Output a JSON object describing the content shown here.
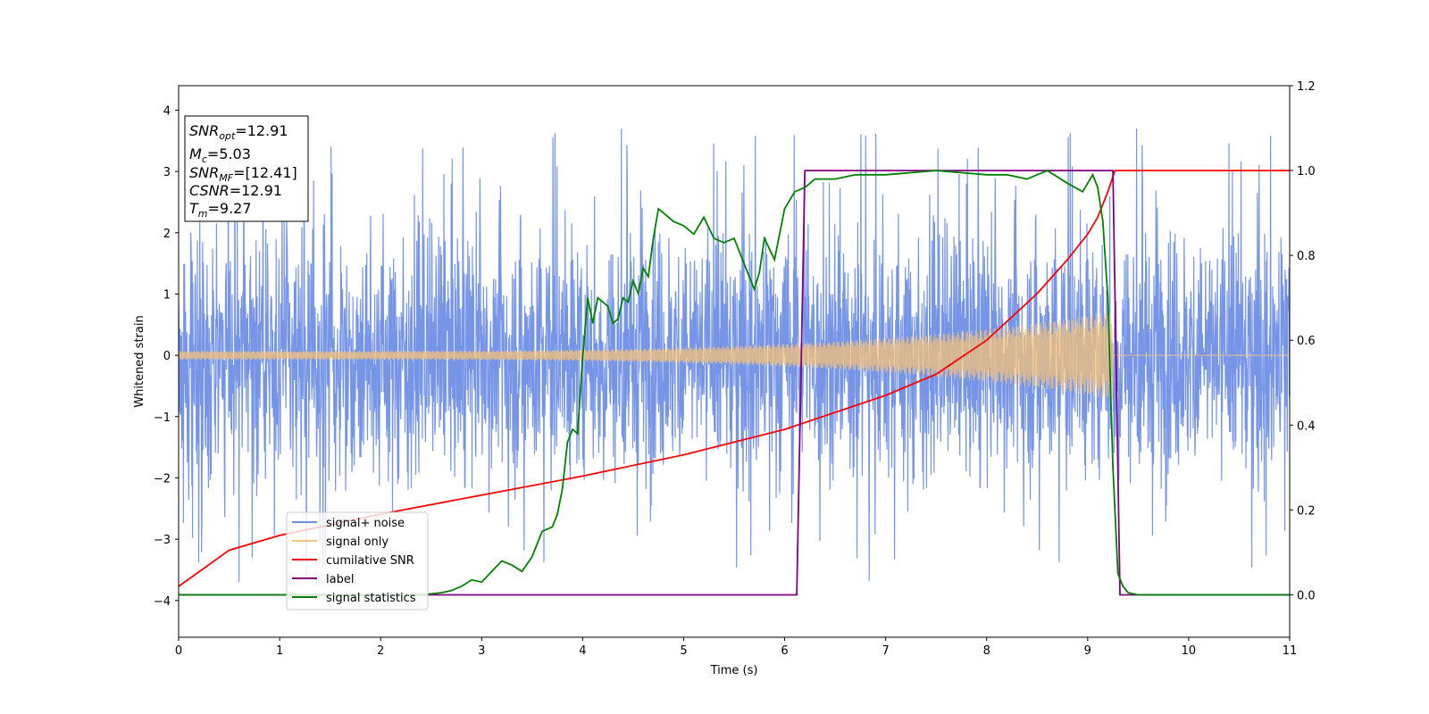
{
  "chart_data": {
    "type": "line",
    "title": "",
    "xlabel": "Time (s)",
    "ylabel": "Whitened strain",
    "xlim": [
      0,
      11
    ],
    "ylim": [
      -4.6,
      4.4
    ],
    "y2lim": [
      -0.1,
      1.2
    ],
    "xticks": [
      "0",
      "1",
      "2",
      "3",
      "4",
      "5",
      "6",
      "7",
      "8",
      "9",
      "10",
      "11"
    ],
    "yticks": [
      "−4",
      "−3",
      "−2",
      "−1",
      "0",
      "1",
      "2",
      "3",
      "4"
    ],
    "y2ticks": [
      "0.0",
      "0.2",
      "0.4",
      "0.6",
      "0.8",
      "1.0",
      "1.2"
    ],
    "grid": false,
    "legend_position": "lower-left",
    "colors": {
      "signal_noise": "#6f8fe6",
      "signal_only": "#f5c27a",
      "cumulative_snr": "#ff0000",
      "label": "#800080",
      "signal_statistics": "#008000"
    },
    "textbox": {
      "snr_opt_sym": "SNR",
      "snr_opt_sub": "opt",
      "snr_opt_val": "=12.91",
      "mc_sym": "M",
      "mc_sub": "c",
      "mc_val": "=5.03",
      "snr_mf_sym": "SNR",
      "snr_mf_sub": "MF",
      "snr_mf_val": "=[12.41]",
      "csnr_sym": "CSNR",
      "csnr_val": "=12.91",
      "tm_sym": "T",
      "tm_sub": "m",
      "tm_val": "=9.27"
    },
    "series": [
      {
        "name": "signal+ noise",
        "axis": "left",
        "kind": "noise",
        "std": 1.0,
        "end": 11.0,
        "spike_range": [
          -4.15,
          4.0
        ]
      },
      {
        "name": "signal only",
        "axis": "left",
        "kind": "chirp",
        "amp_start": 0.07,
        "amp_end": 0.72,
        "t_merge": 9.25
      },
      {
        "name": "cumilative SNR",
        "axis": "right",
        "x": [
          0,
          0.5,
          1,
          2,
          3,
          4,
          5,
          6,
          7,
          7.5,
          8,
          8.5,
          8.8,
          9,
          9.1,
          9.2,
          9.27,
          9.3,
          11
        ],
        "y": [
          0.02,
          0.105,
          0.14,
          0.19,
          0.235,
          0.28,
          0.33,
          0.39,
          0.47,
          0.52,
          0.6,
          0.71,
          0.79,
          0.85,
          0.89,
          0.95,
          1.0,
          1.0,
          1.0
        ]
      },
      {
        "name": "label",
        "axis": "right",
        "x": [
          0,
          6.12,
          6.2,
          9.25,
          9.32,
          11
        ],
        "y": [
          0,
          0,
          1,
          1,
          0,
          0
        ]
      },
      {
        "name": "signal statistics",
        "axis": "right",
        "x": [
          0,
          2.4,
          2.6,
          2.7,
          2.8,
          2.9,
          3.0,
          3.1,
          3.2,
          3.3,
          3.4,
          3.5,
          3.6,
          3.7,
          3.75,
          3.8,
          3.85,
          3.9,
          3.95,
          4.0,
          4.05,
          4.1,
          4.15,
          4.2,
          4.25,
          4.3,
          4.35,
          4.4,
          4.45,
          4.5,
          4.55,
          4.6,
          4.65,
          4.7,
          4.75,
          4.8,
          4.85,
          4.9,
          5.0,
          5.1,
          5.2,
          5.3,
          5.4,
          5.5,
          5.6,
          5.7,
          5.75,
          5.8,
          5.9,
          6.0,
          6.1,
          6.2,
          6.3,
          6.5,
          6.7,
          7.0,
          7.5,
          8.0,
          8.2,
          8.4,
          8.6,
          8.8,
          8.95,
          9.05,
          9.1,
          9.15,
          9.2,
          9.25,
          9.3,
          9.35,
          9.4,
          9.5,
          10,
          11
        ],
        "y": [
          0,
          0,
          0.005,
          0.01,
          0.02,
          0.035,
          0.03,
          0.055,
          0.08,
          0.07,
          0.055,
          0.09,
          0.15,
          0.16,
          0.19,
          0.25,
          0.36,
          0.39,
          0.38,
          0.56,
          0.7,
          0.64,
          0.7,
          0.69,
          0.68,
          0.64,
          0.65,
          0.7,
          0.69,
          0.74,
          0.71,
          0.77,
          0.75,
          0.84,
          0.91,
          0.9,
          0.89,
          0.88,
          0.87,
          0.85,
          0.89,
          0.84,
          0.83,
          0.84,
          0.78,
          0.72,
          0.76,
          0.84,
          0.79,
          0.91,
          0.95,
          0.96,
          0.98,
          0.98,
          0.99,
          0.99,
          1.0,
          0.99,
          0.99,
          0.98,
          1.0,
          0.97,
          0.95,
          0.99,
          0.96,
          0.88,
          0.7,
          0.3,
          0.05,
          0.02,
          0.005,
          0,
          0,
          0
        ]
      }
    ]
  }
}
